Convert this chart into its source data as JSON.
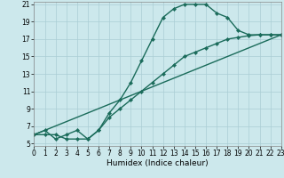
{
  "title": "",
  "xlabel": "Humidex (Indice chaleur)",
  "bg_color": "#cce8ec",
  "grid_color": "#aacdd4",
  "line_color": "#1a6b5a",
  "x_min": 0,
  "x_max": 23,
  "y_min": 5,
  "y_max": 21,
  "yticks": [
    5,
    7,
    9,
    11,
    13,
    15,
    17,
    19,
    21
  ],
  "xticks": [
    0,
    1,
    2,
    3,
    4,
    5,
    6,
    7,
    8,
    9,
    10,
    11,
    12,
    13,
    14,
    15,
    16,
    17,
    18,
    19,
    20,
    21,
    22,
    23
  ],
  "series1_x": [
    0,
    1,
    2,
    3,
    4,
    5,
    6,
    7,
    8,
    9,
    10,
    11,
    12,
    13,
    14,
    15,
    16,
    17,
    18,
    19,
    20,
    21,
    22,
    23
  ],
  "series1_y": [
    6.0,
    6.5,
    5.5,
    6.0,
    6.5,
    5.5,
    6.5,
    8.5,
    10.0,
    12.0,
    14.5,
    17.0,
    19.5,
    20.5,
    21.0,
    21.0,
    21.0,
    20.0,
    19.5,
    18.0,
    17.5,
    17.5,
    17.5,
    17.5
  ],
  "series2_x": [
    0,
    1,
    2,
    3,
    4,
    5,
    6,
    7,
    8,
    9,
    10,
    11,
    12,
    13,
    14,
    15,
    16,
    17,
    18,
    19,
    20,
    21,
    22,
    23
  ],
  "series2_y": [
    6.0,
    6.0,
    6.0,
    5.5,
    5.5,
    5.5,
    6.5,
    8.0,
    9.0,
    10.0,
    11.0,
    12.0,
    13.0,
    14.0,
    15.0,
    15.5,
    16.0,
    16.5,
    17.0,
    17.2,
    17.4,
    17.5,
    17.5,
    17.5
  ],
  "series3_x": [
    0,
    23
  ],
  "series3_y": [
    6.0,
    17.5
  ],
  "markersize": 2.2,
  "linewidth": 1.0,
  "tick_fontsize": 5.5,
  "xlabel_fontsize": 6.5,
  "spine_color": "#888888"
}
